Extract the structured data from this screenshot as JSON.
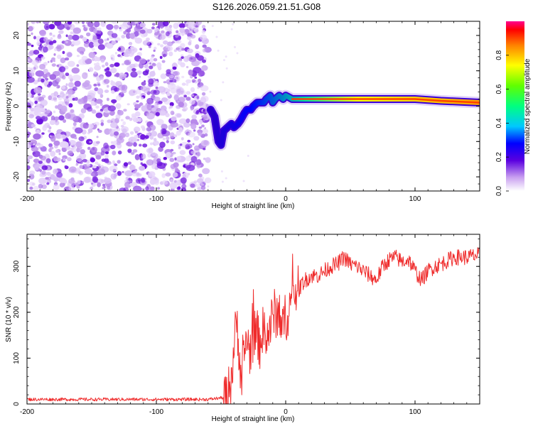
{
  "figure_title": "S126.2026.059.21.51.G08",
  "chart_data": [
    {
      "type": "heatmap",
      "title": "S126.2026.059.21.51.G08",
      "xlabel": "Height of straight line (km)",
      "ylabel": "Frequency (Hz)",
      "xlim": [
        -200,
        150
      ],
      "ylim": [
        -24,
        24
      ],
      "x_ticks": [
        -200,
        -100,
        0,
        100
      ],
      "x_tick_labels": [
        "-200",
        "-100",
        "0",
        "100"
      ],
      "y_ticks": [
        -20,
        -10,
        0,
        10,
        20
      ],
      "y_tick_labels": [
        "-20",
        "-10",
        "0",
        "10",
        "20"
      ],
      "noise_region_x": [
        -200,
        -60
      ],
      "ridge": {
        "x": [
          -58,
          -55,
          -52,
          -50,
          -48,
          -45,
          -42,
          -40,
          -37,
          -35,
          -32,
          -30,
          -27,
          -25,
          -22,
          -20,
          -17,
          -15,
          -12,
          -10,
          -8,
          -5,
          -2,
          0,
          5,
          10,
          20,
          40,
          60,
          80,
          100,
          120,
          150
        ],
        "y": [
          -1,
          -3,
          -10,
          -11,
          -7,
          -6,
          -5,
          -6,
          -5,
          -4,
          -2,
          -1,
          -1,
          0,
          1,
          1,
          1,
          2,
          3,
          1,
          2,
          3,
          2,
          3,
          2,
          2,
          2,
          2,
          2,
          2,
          2,
          1.5,
          1
        ]
      },
      "colorbar": {
        "label": "Normalized spectral amplitude",
        "range": [
          0,
          1
        ],
        "ticks": [
          0.0,
          0.2,
          0.4,
          0.6,
          0.8
        ],
        "tick_labels": [
          "0.0",
          "0.2",
          "0.4",
          "0.6",
          "0.8"
        ]
      }
    },
    {
      "type": "line",
      "xlabel": "Height of straight line (km)",
      "ylabel": "SNR (10 * v/v)",
      "xlim": [
        -200,
        150
      ],
      "ylim": [
        0,
        370
      ],
      "x_ticks": [
        -200,
        -100,
        0,
        100
      ],
      "x_tick_labels": [
        "-200",
        "-100",
        "0",
        "100"
      ],
      "y_ticks": [
        0,
        100,
        200,
        300
      ],
      "y_tick_labels": [
        "0",
        "100",
        "200",
        "300"
      ],
      "series": [
        {
          "name": "SNR",
          "color": "#ef2b2b",
          "x": [
            -200,
            -150,
            -100,
            -60,
            -45,
            -42,
            -40,
            -38,
            -36,
            -34,
            -32,
            -30,
            -28,
            -25,
            -22,
            -20,
            -18,
            -15,
            -12,
            -10,
            -8,
            -5,
            -2,
            0,
            3,
            5,
            8,
            10,
            12,
            15,
            20,
            25,
            30,
            35,
            40,
            45,
            50,
            55,
            60,
            65,
            70,
            75,
            80,
            85,
            90,
            95,
            100,
            105,
            110,
            115,
            120,
            130,
            140,
            150
          ],
          "y": [
            10,
            10,
            10,
            10,
            15,
            60,
            120,
            180,
            120,
            40,
            110,
            150,
            110,
            150,
            150,
            130,
            160,
            140,
            170,
            190,
            200,
            190,
            170,
            190,
            210,
            230,
            250,
            245,
            260,
            270,
            280,
            280,
            290,
            300,
            305,
            320,
            305,
            300,
            290,
            280,
            270,
            300,
            315,
            320,
            310,
            315,
            290,
            270,
            290,
            300,
            305,
            320,
            320,
            325
          ]
        }
      ]
    }
  ]
}
